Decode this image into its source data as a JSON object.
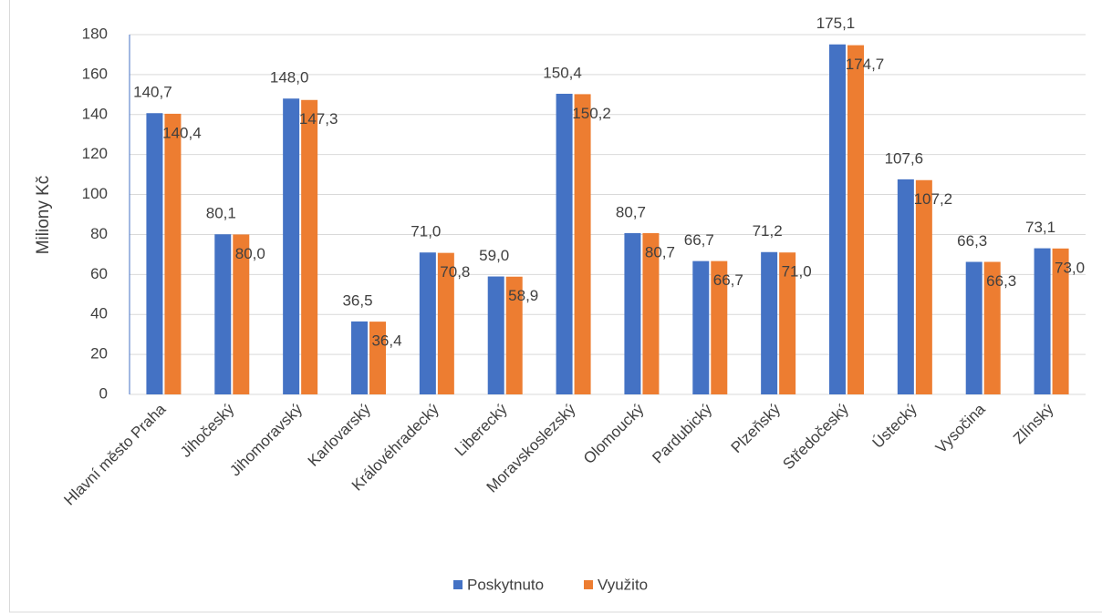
{
  "chart_data": {
    "type": "bar",
    "y_label": "Miliony Kč",
    "categories": [
      "Hlavní město Praha",
      "Jihočeský",
      "Jihomoravský",
      "Karlovarský",
      "Královéhradecký",
      "Liberecký",
      "Moravskoslezský",
      "Olomoucký",
      "Pardubický",
      "Plzeňský",
      "Středočeský",
      "Ústecký",
      "Vysočina",
      "Zlínský"
    ],
    "series": [
      {
        "name": "Poskytnuto",
        "color": "#4472c4",
        "values": [
          140.7,
          80.1,
          148.0,
          36.5,
          71.0,
          59.0,
          150.4,
          80.7,
          66.7,
          71.2,
          175.1,
          107.6,
          66.3,
          73.1
        ],
        "value_labels": [
          "140,7",
          "80,1",
          "148,0",
          "36,5",
          "71,0",
          "59,0",
          "150,4",
          "80,7",
          "66,7",
          "71,2",
          "175,1",
          "107,6",
          "66,3",
          "73,1"
        ]
      },
      {
        "name": "Využito",
        "color": "#ed7d31",
        "values": [
          140.4,
          80.0,
          147.3,
          36.4,
          70.8,
          58.9,
          150.2,
          80.7,
          66.7,
          71.0,
          174.7,
          107.2,
          66.3,
          73.0
        ],
        "value_labels": [
          "140,4",
          "80,0",
          "147,3",
          "36,4",
          "70,8",
          "58,9",
          "150,2",
          "80,7",
          "66,7",
          "71,0",
          "174,7",
          "107,2",
          "66,3",
          "73,0"
        ]
      }
    ],
    "ylim": [
      0,
      180
    ],
    "yticks": [
      0,
      20,
      40,
      60,
      80,
      100,
      120,
      140,
      160,
      180
    ],
    "grid": true,
    "legend": "bottom"
  }
}
